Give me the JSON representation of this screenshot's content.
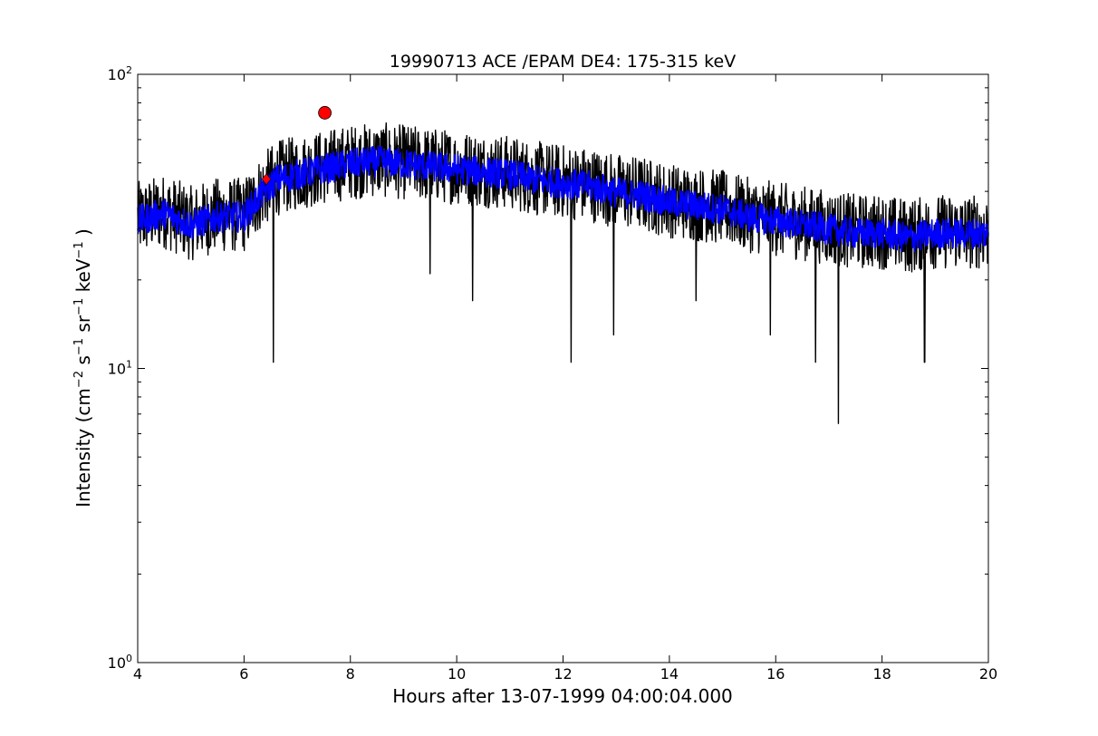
{
  "chart_data": {
    "type": "line",
    "title": "19990713 ACE /EPAM DE4: 175-315 keV",
    "xlabel": "Hours after 13-07-1999 04:00:04.000",
    "ylabel": "Intensity (cm$^{-2}$ s$^{-1}$ sr$^{-1}$ keV$^{-1}$ )",
    "ylabel_parts": {
      "prefix": "Intensity (cm",
      "exp1": "−2",
      "s": " s",
      "exp2": "−1",
      "sr": " sr",
      "exp3": "−1",
      "kev": " keV",
      "exp4": "−1",
      "suffix": " )"
    },
    "xlim": [
      4,
      20
    ],
    "ylim": [
      1,
      100
    ],
    "yscale": "log",
    "grid": false,
    "x_ticks": [
      "4",
      "6",
      "8",
      "10",
      "12",
      "14",
      "16",
      "18",
      "20"
    ],
    "y_ticks": [
      {
        "base": "10",
        "exp": "0"
      },
      {
        "base": "10",
        "exp": "1"
      },
      {
        "base": "10",
        "exp": "2"
      }
    ],
    "series": [
      {
        "color": "#000000",
        "x": [
          4.0,
          4.5,
          5.0,
          5.5,
          6.0,
          6.3,
          6.6,
          7.0,
          7.5,
          8.0,
          8.5,
          9.0,
          9.5,
          10.0,
          10.5,
          11.0,
          11.5,
          12.0,
          12.5,
          13.0,
          13.5,
          14.0,
          14.5,
          15.0,
          15.5,
          16.0,
          16.5,
          17.0,
          17.5,
          18.0,
          18.5,
          19.0,
          19.5,
          20.0
        ],
        "y": [
          32,
          34,
          31,
          33,
          33,
          39,
          44,
          46,
          48,
          50,
          51,
          50,
          49,
          48,
          47,
          46,
          44,
          43,
          42,
          40,
          39,
          37,
          36,
          35,
          33,
          32,
          31,
          30,
          29,
          29,
          28,
          29,
          29,
          29
        ],
        "spread": [
          1.35,
          0.75
        ],
        "dips": [
          [
            6.55,
            10.5
          ],
          [
            9.5,
            21
          ],
          [
            10.3,
            17
          ],
          [
            12.15,
            10.5
          ],
          [
            12.95,
            13
          ],
          [
            14.5,
            17
          ],
          [
            15.9,
            13
          ],
          [
            16.75,
            10.5
          ],
          [
            17.18,
            6.5
          ],
          [
            18.8,
            10.5
          ]
        ]
      },
      {
        "color": "#0000ff",
        "x": [
          4.0,
          4.5,
          5.0,
          5.5,
          6.0,
          6.3,
          6.6,
          7.0,
          7.5,
          8.0,
          8.5,
          9.0,
          9.5,
          10.0,
          10.5,
          11.0,
          11.5,
          12.0,
          12.5,
          13.0,
          13.5,
          14.0,
          14.5,
          15.0,
          15.5,
          16.0,
          16.5,
          17.0,
          17.5,
          18.0,
          18.5,
          19.0,
          19.5,
          20.0
        ],
        "y": [
          32,
          34,
          31,
          33,
          33,
          39,
          44,
          46,
          48,
          50,
          51,
          50,
          49,
          48,
          47,
          46,
          44,
          43,
          42,
          40,
          39,
          37,
          36,
          35,
          33,
          32,
          31,
          30,
          29,
          29,
          28,
          29,
          29,
          29
        ],
        "spread": [
          1.12,
          0.88
        ]
      }
    ],
    "markers": [
      {
        "shape": "circle",
        "color": "#ff0000",
        "x": 7.52,
        "y": 74
      },
      {
        "shape": "diamond",
        "color": "#ff0000",
        "x": 6.42,
        "y": 44
      }
    ]
  }
}
